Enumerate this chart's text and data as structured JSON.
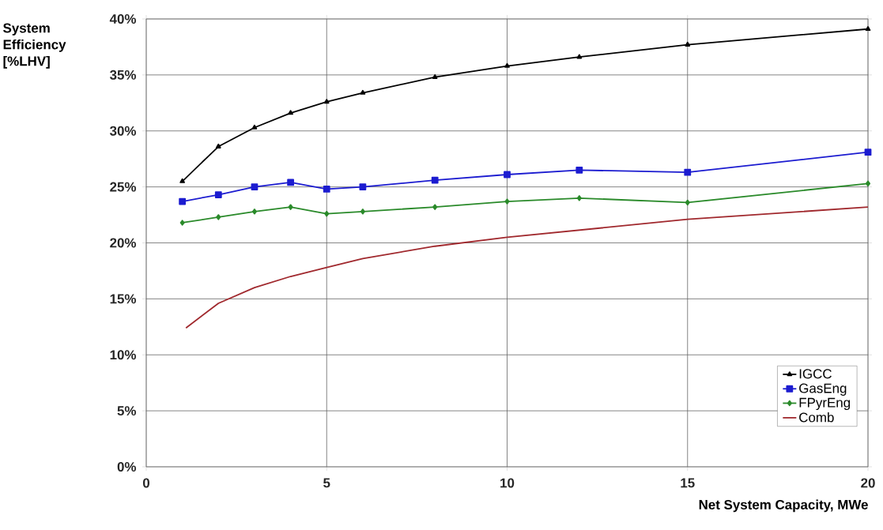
{
  "chart_data": {
    "type": "line",
    "xlabel": "Net System Capacity, MWe",
    "ylabel": "System Efficiency [%LHV]",
    "xlim": [
      0,
      20
    ],
    "xticks": [
      0,
      5,
      10,
      15,
      20
    ],
    "ylim": [
      0,
      40
    ],
    "yticks": [
      {
        "value": 0,
        "label": "0%"
      },
      {
        "value": 5,
        "label": "5%"
      },
      {
        "value": 10,
        "label": "10%"
      },
      {
        "value": 15,
        "label": "15%"
      },
      {
        "value": 20,
        "label": "20%"
      },
      {
        "value": 25,
        "label": "25%"
      },
      {
        "value": 30,
        "label": "30%"
      },
      {
        "value": 35,
        "label": "35%"
      },
      {
        "value": 40,
        "label": "40%"
      }
    ],
    "grid": true,
    "legend": "bottom right",
    "line_style": "solid",
    "series": [
      {
        "name": "IGCC",
        "color": "#000000",
        "marker": "triangle",
        "x": [
          1,
          2,
          3,
          4,
          5,
          6,
          8,
          10,
          12,
          15,
          20
        ],
        "values": [
          25.5,
          28.6,
          30.3,
          31.6,
          32.6,
          33.4,
          34.8,
          35.8,
          36.6,
          37.7,
          39.1
        ]
      },
      {
        "name": "GasEng",
        "color": "#1c1cd0",
        "marker": "square",
        "x": [
          1,
          2,
          3,
          4,
          5,
          6,
          8,
          10,
          12,
          15,
          20
        ],
        "values": [
          23.7,
          24.3,
          25.0,
          25.4,
          24.8,
          25.0,
          25.6,
          26.1,
          26.5,
          26.3,
          28.1
        ]
      },
      {
        "name": "FPyrEng",
        "color": "#2a8a2a",
        "marker": "diamond",
        "x": [
          1,
          2,
          3,
          4,
          5,
          6,
          8,
          10,
          12,
          15,
          20
        ],
        "values": [
          21.8,
          22.3,
          22.8,
          23.2,
          22.6,
          22.8,
          23.2,
          23.7,
          24.0,
          23.6,
          25.3
        ]
      },
      {
        "name": "Comb",
        "color": "#a0282d",
        "marker": "none",
        "x": [
          1.1,
          2,
          3,
          4,
          5,
          6,
          8,
          10,
          15,
          20
        ],
        "values": [
          12.4,
          14.6,
          16.0,
          17.0,
          17.8,
          18.6,
          19.7,
          20.5,
          22.1,
          23.2
        ]
      }
    ]
  }
}
